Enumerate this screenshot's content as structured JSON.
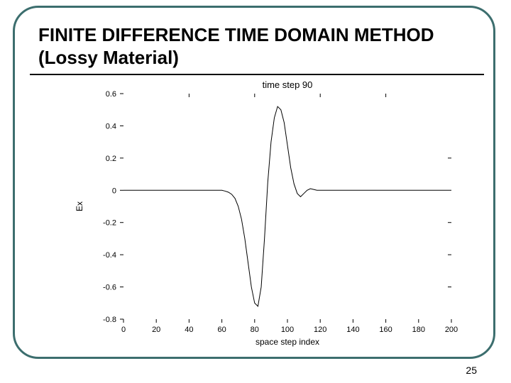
{
  "slide": {
    "title": "FINITE DIFFERENCE TIME DOMAIN METHOD (Lossy Material)",
    "page_number": "25",
    "frame_border_color": "#3c6e6e",
    "frame_border_radius": 36,
    "frame_border_width": 3,
    "background_color": "#ffffff",
    "title_fontsize": 26,
    "title_fontweight": 700,
    "title_color": "#000000"
  },
  "chart": {
    "type": "line",
    "title": "time step 90",
    "title_fontsize": 13,
    "xlabel": "space step index",
    "ylabel": "Ex",
    "label_fontsize": 12,
    "tick_fontsize": 11,
    "xlim": [
      0,
      200
    ],
    "ylim": [
      -0.8,
      0.6
    ],
    "xticks": [
      0,
      20,
      40,
      60,
      80,
      100,
      120,
      140,
      160,
      180,
      200
    ],
    "yticks": [
      -0.8,
      -0.6,
      -0.4,
      -0.2,
      0,
      0.2,
      0.4,
      0.6
    ],
    "top_tick_marks_at_x": [
      40,
      80,
      120,
      160
    ],
    "right_tick_marks_at_y": [
      -0.6,
      -0.4,
      -0.2,
      0.2
    ],
    "background_color": "#ffffff",
    "axis_color": "#000000",
    "line_color": "#000000",
    "line_width": 1,
    "tick_length": 5,
    "series": {
      "x": [
        0,
        5,
        10,
        15,
        20,
        25,
        30,
        35,
        40,
        45,
        50,
        55,
        60,
        62,
        64,
        66,
        68,
        70,
        72,
        74,
        76,
        78,
        80,
        82,
        84,
        86,
        88,
        90,
        92,
        94,
        96,
        98,
        100,
        102,
        104,
        106,
        108,
        110,
        112,
        114,
        116,
        118,
        120,
        125,
        130,
        135,
        140,
        145,
        150,
        155,
        160,
        165,
        170,
        175,
        180,
        185,
        190,
        195,
        200
      ],
      "y": [
        0,
        0,
        0,
        0,
        0,
        0,
        0,
        0,
        0,
        0,
        0,
        0,
        0,
        -0.005,
        -0.012,
        -0.025,
        -0.05,
        -0.1,
        -0.18,
        -0.3,
        -0.45,
        -0.6,
        -0.7,
        -0.72,
        -0.6,
        -0.3,
        0.05,
        0.3,
        0.45,
        0.52,
        0.5,
        0.42,
        0.28,
        0.14,
        0.04,
        -0.02,
        -0.04,
        -0.02,
        0,
        0.01,
        0.005,
        0,
        0,
        0,
        0,
        0,
        0,
        0,
        0,
        0,
        0,
        0,
        0,
        0,
        0,
        0,
        0,
        0,
        0
      ]
    }
  }
}
